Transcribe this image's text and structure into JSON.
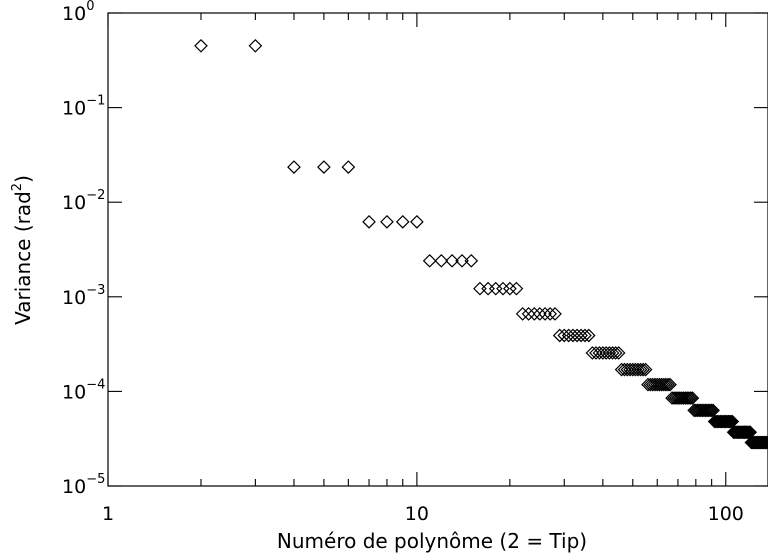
{
  "chart_data": {
    "type": "scatter",
    "title": "",
    "xlabel": "Numéro de polynôme (2 = Tip)",
    "ylabel": "Variance (rad²)",
    "ylabel_base": "Variance (rad",
    "ylabel_exp": "2",
    "ylabel_close": ")",
    "x_scale": "log",
    "y_scale": "log",
    "xlim": [
      1,
      137
    ],
    "ylim": [
      1e-05,
      1
    ],
    "x_ticks": [
      {
        "value": 1,
        "label": "1"
      },
      {
        "value": 10,
        "label": "10"
      },
      {
        "value": 100,
        "label": "100"
      }
    ],
    "y_ticks": [
      {
        "value": 1,
        "base": "10",
        "exp": "0"
      },
      {
        "value": 0.1,
        "base": "10",
        "exp": "−1"
      },
      {
        "value": 0.01,
        "base": "10",
        "exp": "−2"
      },
      {
        "value": 0.001,
        "base": "10",
        "exp": "−3"
      },
      {
        "value": 0.0001,
        "base": "10",
        "exp": "−4"
      },
      {
        "value": 1e-05,
        "base": "10",
        "exp": "−5"
      }
    ],
    "marker": "diamond-open",
    "grid": false,
    "orders": [
      {
        "n": 1,
        "variance": 0.45
      },
      {
        "n": 2,
        "variance": 0.0235
      },
      {
        "n": 3,
        "variance": 0.0062
      },
      {
        "n": 4,
        "variance": 0.0024
      },
      {
        "n": 5,
        "variance": 0.00122
      },
      {
        "n": 6,
        "variance": 0.00066
      },
      {
        "n": 7,
        "variance": 0.00039
      },
      {
        "n": 8,
        "variance": 0.000255
      },
      {
        "n": 9,
        "variance": 0.00017
      },
      {
        "n": 10,
        "variance": 0.000118
      },
      {
        "n": 11,
        "variance": 8.5e-05
      },
      {
        "n": 12,
        "variance": 6.3e-05
      },
      {
        "n": 13,
        "variance": 4.8e-05
      },
      {
        "n": 14,
        "variance": 3.7e-05
      },
      {
        "n": 15,
        "variance": 2.88e-05
      }
    ]
  }
}
